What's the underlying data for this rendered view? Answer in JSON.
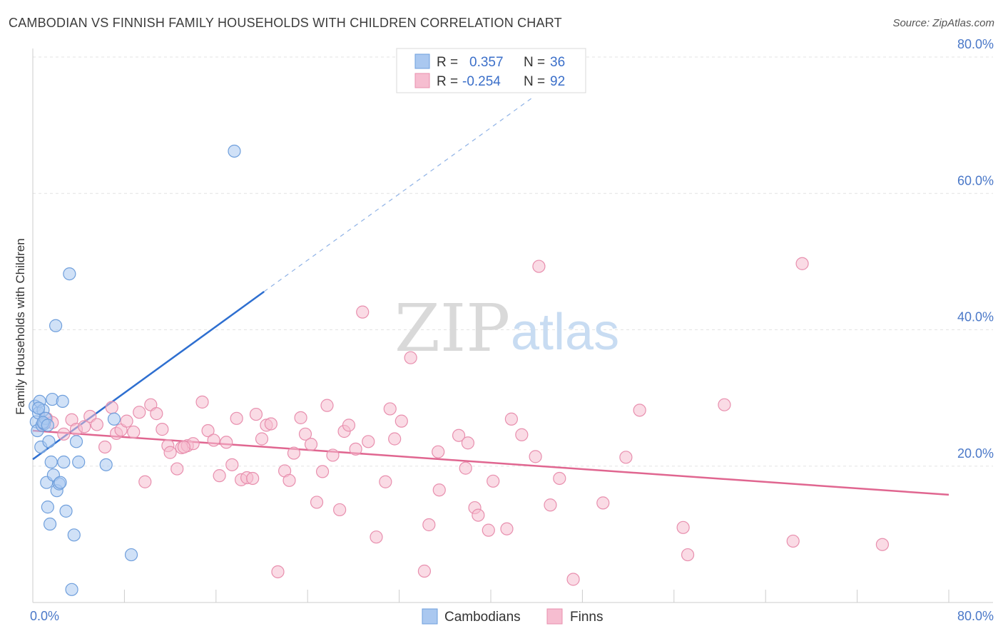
{
  "title": "CAMBODIAN VS FINNISH FAMILY HOUSEHOLDS WITH CHILDREN CORRELATION CHART",
  "source": "Source: ZipAtlas.com",
  "colors": {
    "cambodians_fill": "#aac8f0",
    "cambodians_stroke": "#6f9fdc",
    "cambodians_line": "#2e6fd0",
    "finns_fill": "#f6bdd0",
    "finns_stroke": "#e88fae",
    "finns_line": "#e06690",
    "grid": "#e3e3e3",
    "axis": "#cccccc"
  },
  "legend": {
    "rows": [
      {
        "r_label": "R =",
        "r_value": "0.357",
        "n_label": "N =",
        "n_value": "36"
      },
      {
        "r_label": "R =",
        "r_value": "-0.254",
        "n_label": "N =",
        "n_value": "92"
      }
    ]
  },
  "watermark": {
    "zip": "ZIP",
    "atlas": "atlas"
  },
  "chart_data": {
    "type": "scatter",
    "title": "CAMBODIAN VS FINNISH FAMILY HOUSEHOLDS WITH CHILDREN CORRELATION CHART",
    "xlabel": "",
    "ylabel": "Family Households with Children",
    "xlim": [
      0,
      80
    ],
    "ylim": [
      0,
      80
    ],
    "x_tick_labels": [
      "0.0%",
      "80.0%"
    ],
    "y_ticks": [
      20,
      40,
      60,
      80
    ],
    "y_tick_labels": [
      "20.0%",
      "40.0%",
      "60.0%",
      "80.0%"
    ],
    "legend_position": "top-center",
    "series": [
      {
        "name": "Cambodians",
        "points": [
          [
            0.2,
            28.8
          ],
          [
            0.3,
            26.5
          ],
          [
            0.4,
            25.2
          ],
          [
            0.5,
            27.8
          ],
          [
            0.6,
            29.5
          ],
          [
            0.7,
            22.8
          ],
          [
            0.8,
            26.0
          ],
          [
            0.9,
            28.2
          ],
          [
            1.0,
            26.2
          ],
          [
            1.1,
            27.0
          ],
          [
            1.2,
            17.6
          ],
          [
            1.3,
            14.0
          ],
          [
            1.4,
            23.6
          ],
          [
            1.5,
            11.5
          ],
          [
            1.6,
            20.6
          ],
          [
            1.7,
            29.8
          ],
          [
            1.8,
            18.7
          ],
          [
            2.0,
            40.6
          ],
          [
            2.1,
            16.4
          ],
          [
            2.3,
            17.4
          ],
          [
            2.4,
            17.6
          ],
          [
            2.6,
            29.5
          ],
          [
            2.7,
            20.6
          ],
          [
            2.9,
            13.4
          ],
          [
            3.2,
            48.2
          ],
          [
            3.6,
            9.9
          ],
          [
            3.8,
            23.6
          ],
          [
            4.0,
            20.6
          ],
          [
            3.4,
            1.9
          ],
          [
            6.4,
            20.2
          ],
          [
            7.1,
            26.9
          ],
          [
            8.6,
            7.0
          ],
          [
            17.6,
            66.2
          ],
          [
            0.5,
            28.5
          ],
          [
            0.9,
            26.4
          ],
          [
            1.3,
            26.0
          ]
        ]
      },
      {
        "name": "Finns",
        "points": [
          [
            0.9,
            26.2
          ],
          [
            1.2,
            27.0
          ],
          [
            1.7,
            26.4
          ],
          [
            2.7,
            24.7
          ],
          [
            3.4,
            26.8
          ],
          [
            3.8,
            25.4
          ],
          [
            4.5,
            25.8
          ],
          [
            5.0,
            27.3
          ],
          [
            5.6,
            26.1
          ],
          [
            6.3,
            22.8
          ],
          [
            6.9,
            28.6
          ],
          [
            7.3,
            24.8
          ],
          [
            7.7,
            25.3
          ],
          [
            8.2,
            26.6
          ],
          [
            8.8,
            25.0
          ],
          [
            9.3,
            27.9
          ],
          [
            9.8,
            17.7
          ],
          [
            10.3,
            29.0
          ],
          [
            10.8,
            27.7
          ],
          [
            11.3,
            25.4
          ],
          [
            11.8,
            23.0
          ],
          [
            12.0,
            22.0
          ],
          [
            12.6,
            19.6
          ],
          [
            13.0,
            22.7
          ],
          [
            13.5,
            23.0
          ],
          [
            14.0,
            23.3
          ],
          [
            14.8,
            29.4
          ],
          [
            15.3,
            25.2
          ],
          [
            15.8,
            23.8
          ],
          [
            16.3,
            18.6
          ],
          [
            16.9,
            23.5
          ],
          [
            17.4,
            20.2
          ],
          [
            17.8,
            27.0
          ],
          [
            18.2,
            18.0
          ],
          [
            18.7,
            18.3
          ],
          [
            19.2,
            18.2
          ],
          [
            19.5,
            27.6
          ],
          [
            20.0,
            24.0
          ],
          [
            20.4,
            26.0
          ],
          [
            20.8,
            26.2
          ],
          [
            21.4,
            4.5
          ],
          [
            22.0,
            19.3
          ],
          [
            22.4,
            17.9
          ],
          [
            22.8,
            21.9
          ],
          [
            23.4,
            27.1
          ],
          [
            23.8,
            24.7
          ],
          [
            24.3,
            23.2
          ],
          [
            24.8,
            14.7
          ],
          [
            25.3,
            19.2
          ],
          [
            25.7,
            28.9
          ],
          [
            26.2,
            21.6
          ],
          [
            26.8,
            13.6
          ],
          [
            27.2,
            25.1
          ],
          [
            27.6,
            26.0
          ],
          [
            28.2,
            22.5
          ],
          [
            28.8,
            42.6
          ],
          [
            29.3,
            23.6
          ],
          [
            30.0,
            9.6
          ],
          [
            30.8,
            17.7
          ],
          [
            31.2,
            28.4
          ],
          [
            32.2,
            26.6
          ],
          [
            33.0,
            35.9
          ],
          [
            34.2,
            4.6
          ],
          [
            34.6,
            11.4
          ],
          [
            35.4,
            22.1
          ],
          [
            35.5,
            16.5
          ],
          [
            37.2,
            24.5
          ],
          [
            37.8,
            19.7
          ],
          [
            38.0,
            23.4
          ],
          [
            38.6,
            13.9
          ],
          [
            38.9,
            12.8
          ],
          [
            39.8,
            10.6
          ],
          [
            40.2,
            17.8
          ],
          [
            41.4,
            10.8
          ],
          [
            41.8,
            26.9
          ],
          [
            42.7,
            24.6
          ],
          [
            43.9,
            21.4
          ],
          [
            44.2,
            49.3
          ],
          [
            45.2,
            14.3
          ],
          [
            47.2,
            3.4
          ],
          [
            49.8,
            14.6
          ],
          [
            51.8,
            21.3
          ],
          [
            53.0,
            28.2
          ],
          [
            56.8,
            11.0
          ],
          [
            57.2,
            7.0
          ],
          [
            60.4,
            29.0
          ],
          [
            66.4,
            9.0
          ],
          [
            67.2,
            49.7
          ],
          [
            74.2,
            8.5
          ],
          [
            46.0,
            18.2
          ],
          [
            13.2,
            22.8
          ],
          [
            31.6,
            24.0
          ]
        ]
      }
    ],
    "trend_lines": [
      {
        "series": "Cambodians",
        "x_start": 0,
        "y_start": 21.0,
        "x_end_solid": 20.2,
        "y_end_solid": 45.6,
        "x_end_dashed": 43.6,
        "y_end_dashed": 74.0,
        "style": "solid then dashed"
      },
      {
        "series": "Finns",
        "x_start": 0,
        "y_start": 25.2,
        "x_end": 80,
        "y_end": 15.8,
        "style": "solid"
      }
    ]
  }
}
